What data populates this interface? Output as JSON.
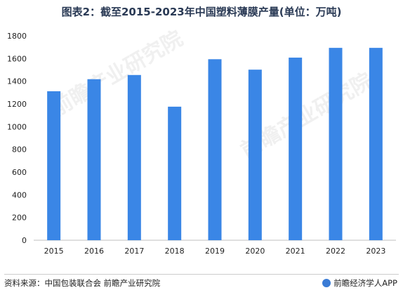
{
  "title": "图表2：截至2015-2023年中国塑料薄膜产量(单位：万吨)",
  "watermark": "前瞻产业研究院",
  "footer": {
    "source": "资料来源：中国包装联合会 前瞻产业研究院",
    "brand": "前瞻经济学人APP"
  },
  "colors": {
    "bar": "#3a86e6",
    "axis": "#bfbfbf",
    "text": "#222222"
  },
  "chart_data": {
    "type": "bar",
    "title": "图表2：截至2015-2023年中国塑料薄膜产量(单位：万吨)",
    "categories": [
      "2015",
      "2016",
      "2017",
      "2018",
      "2019",
      "2020",
      "2021",
      "2022",
      "2023"
    ],
    "values": [
      1312,
      1418,
      1455,
      1176,
      1594,
      1502,
      1608,
      1694,
      1694
    ],
    "ylim": [
      0,
      1800
    ],
    "yticks": [
      0,
      200,
      400,
      600,
      800,
      1000,
      1200,
      1400,
      1600,
      1800
    ],
    "grid": false,
    "legend": "none"
  }
}
